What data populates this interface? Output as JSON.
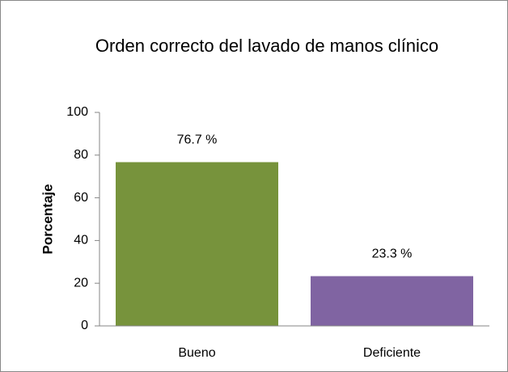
{
  "chart_data": {
    "type": "bar",
    "title": "Orden correcto del lavado de manos clínico",
    "y_label": "Porcentaje",
    "categories": [
      "Bueno",
      "Deficiente"
    ],
    "values": [
      76.7,
      23.3
    ],
    "value_labels": [
      "76.7 %",
      "23.3 %"
    ],
    "colors": [
      "#77933c",
      "#8064a2"
    ],
    "ylim": [
      0,
      100
    ],
    "yticks": [
      0,
      20,
      40,
      60,
      80,
      100
    ],
    "grid": false
  }
}
